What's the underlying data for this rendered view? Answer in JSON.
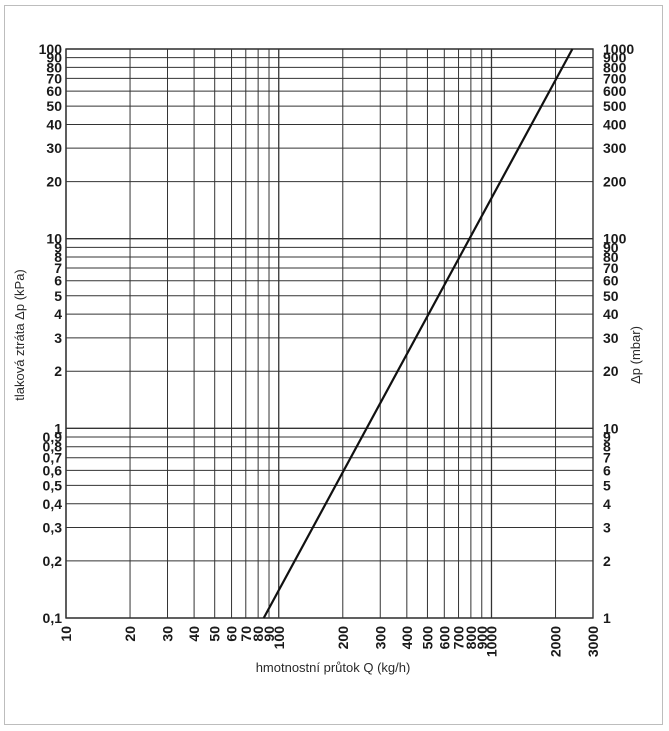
{
  "chart_data": {
    "type": "line",
    "x_scale": "log",
    "y_scale": "log",
    "xlim": [
      10,
      3000
    ],
    "ylim": [
      0.1,
      100
    ],
    "y2lim": [
      1,
      1000
    ],
    "grid": true,
    "xlabel": "hmotnostní průtok Q (kg/h)",
    "ylabel": "tlaková ztráta  Δp (kPa)",
    "y2label": "Δp (mbar)",
    "x_ticks": [
      10,
      20,
      30,
      40,
      50,
      60,
      70,
      80,
      90,
      100,
      200,
      300,
      400,
      500,
      600,
      700,
      800,
      900,
      1000,
      2000,
      3000
    ],
    "x_tick_labels": [
      "10",
      "20",
      "30",
      "40",
      "50",
      "60",
      "70",
      "80",
      "90",
      "100",
      "200",
      "300",
      "400",
      "500",
      "600",
      "700",
      "800",
      "900",
      "1000",
      "2000",
      "3000"
    ],
    "y_ticks": [
      0.1,
      0.2,
      0.3,
      0.4,
      0.5,
      0.6,
      0.7,
      0.8,
      0.9,
      1,
      2,
      3,
      4,
      5,
      6,
      7,
      8,
      9,
      10,
      20,
      30,
      40,
      50,
      60,
      70,
      80,
      90,
      100
    ],
    "y_tick_labels": [
      "0,1",
      "0,2",
      "0,3",
      "0,4",
      "0,5",
      "0,6",
      "0,7",
      "0,8",
      "0,9",
      "1",
      "2",
      "3",
      "4",
      "5",
      "6",
      "7",
      "8",
      "9",
      "10",
      "20",
      "30",
      "40",
      "50",
      "60",
      "70",
      "80",
      "90",
      "100"
    ],
    "y2_ticks": [
      1,
      2,
      3,
      4,
      5,
      6,
      7,
      8,
      9,
      10,
      20,
      30,
      40,
      50,
      60,
      70,
      80,
      90,
      100,
      200,
      300,
      400,
      500,
      600,
      700,
      800,
      900,
      1000
    ],
    "y2_tick_labels": [
      "1",
      "2",
      "3",
      "4",
      "5",
      "6",
      "7",
      "8",
      "9",
      "10",
      "20",
      "30",
      "40",
      "50",
      "60",
      "70",
      "80",
      "90",
      "100",
      "200",
      "300",
      "400",
      "500",
      "600",
      "700",
      "800",
      "900",
      "1000"
    ],
    "series": [
      {
        "x": [
          85,
          2400
        ],
        "y": [
          0.1,
          100
        ]
      }
    ]
  },
  "colors": {
    "grid": "#333333",
    "line": "#111111",
    "frame": "#bdbdbd"
  }
}
